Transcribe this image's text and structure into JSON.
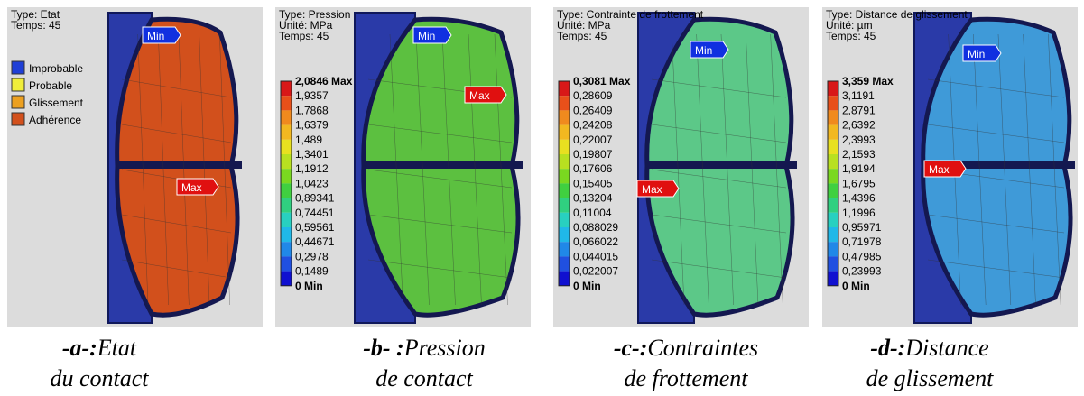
{
  "panels": [
    {
      "header": [
        "Type: Etat",
        "Temps: 45"
      ],
      "legend": [
        {
          "label": "Improbable",
          "color": "#1f3fd6"
        },
        {
          "label": "Probable",
          "color": "#f0ee3a"
        },
        {
          "label": "Glissement",
          "color": "#eca020"
        },
        {
          "label": "Adhérence",
          "color": "#d2501c"
        }
      ],
      "min_tag": "Min",
      "max_tag": "Max",
      "caption": {
        "label": "-a-:",
        "line1": "Etat",
        "line2": "du contact"
      }
    },
    {
      "header": [
        "Type: Pression",
        "Unité: MPa",
        "Temps: 45"
      ],
      "scale": [
        "2,0846 Max",
        "1,9357",
        "1,7868",
        "1,6379",
        "1,489",
        "1,3401",
        "1,1912",
        "1,0423",
        "0,89341",
        "0,74451",
        "0,59561",
        "0,44671",
        "0,2978",
        "0,1489",
        "0 Min"
      ],
      "min_tag": "Min",
      "max_tag": "Max",
      "caption": {
        "label": "-b- :",
        "line1": "Pression",
        "line2": "de contact"
      }
    },
    {
      "header": [
        "Type: Contrainte de frottement",
        "Unité: MPa",
        "Temps: 45"
      ],
      "scale": [
        "0,3081 Max",
        "0,28609",
        "0,26409",
        "0,24208",
        "0,22007",
        "0,19807",
        "0,17606",
        "0,15405",
        "0,13204",
        "0,11004",
        "0,088029",
        "0,066022",
        "0,044015",
        "0,022007",
        "0 Min"
      ],
      "min_tag": "Min",
      "max_tag": "Max",
      "caption": {
        "label": "-c-:",
        "line1": "Contraintes",
        "line2": "de frottement"
      }
    },
    {
      "header": [
        "Type: Distance de glissement",
        "Unité: µm",
        "Temps: 45"
      ],
      "scale": [
        "3,359 Max",
        "3,1191",
        "2,8791",
        "2,6392",
        "2,3993",
        "2,1593",
        "1,9194",
        "1,6795",
        "1,4396",
        "1,1996",
        "0,95971",
        "0,71978",
        "0,47985",
        "0,23993",
        "0 Min"
      ],
      "min_tag": "Min",
      "max_tag": "Max",
      "caption": {
        "label": "-d-:",
        "line1": "Distance",
        "line2": "de glissement"
      }
    }
  ]
}
